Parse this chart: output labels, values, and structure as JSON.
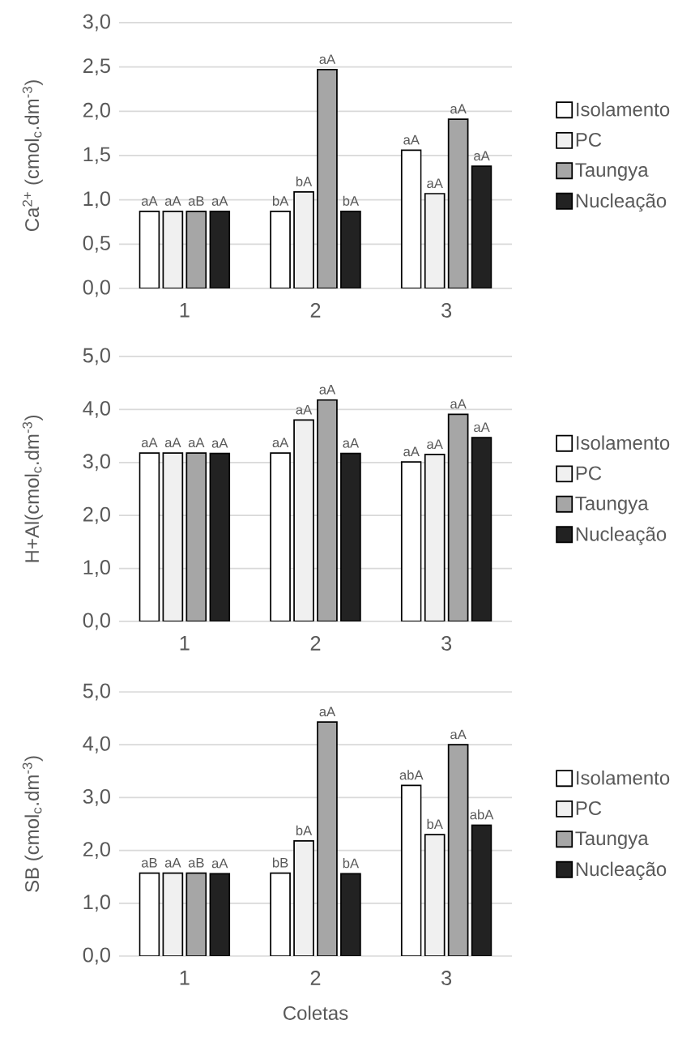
{
  "chart_data": [
    {
      "type": "bar",
      "ylabel": "Ca$^{2+}$ (cmol$_{c}$.dm$^{-3}$)",
      "categories": [
        "1",
        "2",
        "3"
      ],
      "ylim": [
        0,
        3
      ],
      "yticks": [
        {
          "value": 0,
          "label": "0,0"
        },
        {
          "value": 0.5,
          "label": "0,5"
        },
        {
          "value": 1,
          "label": "1,0"
        },
        {
          "value": 1.5,
          "label": "1,5"
        },
        {
          "value": 2,
          "label": "2,0"
        },
        {
          "value": 2.5,
          "label": "2,5"
        },
        {
          "value": 3,
          "label": "3,0"
        }
      ],
      "grid": "y",
      "legend": "right",
      "series": [
        {
          "name": "Isolamento",
          "color": "#ffffff",
          "values": [
            0.87,
            0.87,
            1.56
          ],
          "value_labels": [
            "aA",
            "bA",
            "aA"
          ]
        },
        {
          "name": "PC",
          "color": "#f0f0f0",
          "values": [
            0.87,
            1.09,
            1.07
          ],
          "value_labels": [
            "aA",
            "bA",
            "aA"
          ]
        },
        {
          "name": "Taungya",
          "color": "#a6a6a6",
          "values": [
            0.87,
            2.47,
            1.91
          ],
          "value_labels": [
            "aB",
            "aA",
            "aA"
          ]
        },
        {
          "name": "Nucleação",
          "color": "#222222",
          "values": [
            0.87,
            0.87,
            1.38
          ],
          "value_labels": [
            "aA",
            "bA",
            "aA"
          ]
        }
      ]
    },
    {
      "type": "bar",
      "ylabel": "H+Al(cmol$_{c}$.dm$^{-3}$)",
      "categories": [
        "1",
        "2",
        "3"
      ],
      "ylim": [
        0,
        5
      ],
      "yticks": [
        {
          "value": 0,
          "label": "0,0"
        },
        {
          "value": 1,
          "label": "1,0"
        },
        {
          "value": 2,
          "label": "2,0"
        },
        {
          "value": 3,
          "label": "3,0"
        },
        {
          "value": 4,
          "label": "4,0"
        },
        {
          "value": 5,
          "label": "5,0"
        }
      ],
      "grid": "y",
      "legend": "right",
      "series": [
        {
          "name": "Isolamento",
          "color": "#ffffff",
          "values": [
            3.18,
            3.18,
            3.01
          ],
          "value_labels": [
            "aA",
            "aA",
            "aA"
          ]
        },
        {
          "name": "PC",
          "color": "#f0f0f0",
          "values": [
            3.18,
            3.8,
            3.15
          ],
          "value_labels": [
            "aA",
            "aA",
            "aA"
          ]
        },
        {
          "name": "Taungya",
          "color": "#a6a6a6",
          "values": [
            3.18,
            4.18,
            3.91
          ],
          "value_labels": [
            "aA",
            "aA",
            "aA"
          ]
        },
        {
          "name": "Nucleação",
          "color": "#222222",
          "values": [
            3.17,
            3.17,
            3.47
          ],
          "value_labels": [
            "aA",
            "aA",
            "aA"
          ]
        }
      ]
    },
    {
      "type": "bar",
      "ylabel": "SB (cmol$_{c}$.dm$^{-3}$)",
      "xlabel": "Coletas",
      "categories": [
        "1",
        "2",
        "3"
      ],
      "ylim": [
        0,
        5
      ],
      "yticks": [
        {
          "value": 0,
          "label": "0,0"
        },
        {
          "value": 1,
          "label": "1,0"
        },
        {
          "value": 2,
          "label": "2,0"
        },
        {
          "value": 3,
          "label": "3,0"
        },
        {
          "value": 4,
          "label": "4,0"
        },
        {
          "value": 5,
          "label": "5,0"
        }
      ],
      "grid": "y",
      "legend": "right",
      "series": [
        {
          "name": "Isolamento",
          "color": "#ffffff",
          "values": [
            1.57,
            1.57,
            3.23
          ],
          "value_labels": [
            "aB",
            "bB",
            "abA"
          ]
        },
        {
          "name": "PC",
          "color": "#f0f0f0",
          "values": [
            1.57,
            2.18,
            2.3
          ],
          "value_labels": [
            "aA",
            "bA",
            "bA"
          ]
        },
        {
          "name": "Taungya",
          "color": "#a6a6a6",
          "values": [
            1.57,
            4.43,
            4.0
          ],
          "value_labels": [
            "aB",
            "aA",
            "aA"
          ]
        },
        {
          "name": "Nucleação",
          "color": "#222222",
          "values": [
            1.56,
            1.56,
            2.48
          ],
          "value_labels": [
            "aA",
            "bA",
            "abA"
          ]
        }
      ]
    }
  ]
}
